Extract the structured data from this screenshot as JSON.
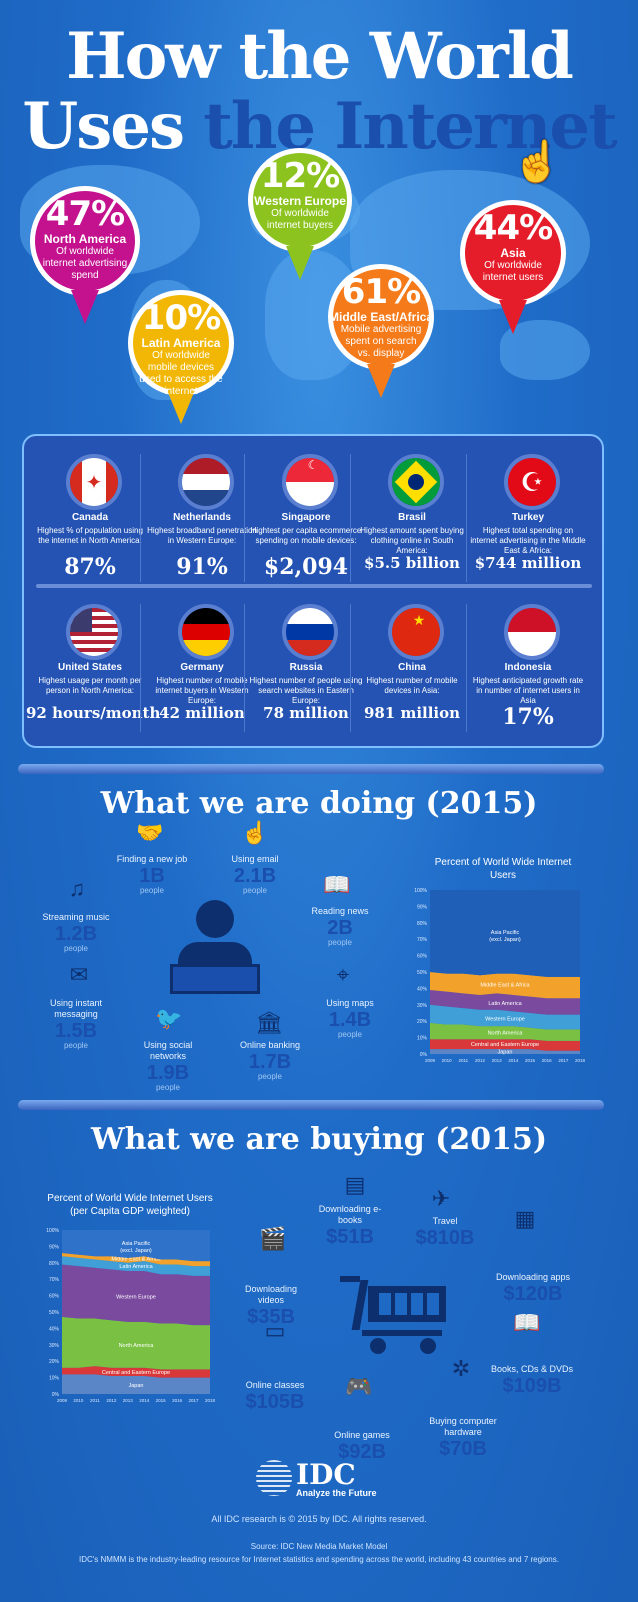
{
  "title": {
    "line1": "How the World",
    "line2a": "Uses ",
    "line2b": "the Internet"
  },
  "pins": [
    {
      "pct": "47%",
      "region": "North America",
      "desc": "Of worldwide internet advertising spend",
      "color": "#c4128f"
    },
    {
      "pct": "10%",
      "region": "Latin America",
      "desc": "Of worldwide mobile devices used to access the internet",
      "color": "#f2b705"
    },
    {
      "pct": "12%",
      "region": "Western Europe",
      "desc": "Of worldwide internet buyers",
      "color": "#8cc31e"
    },
    {
      "pct": "61%",
      "region": "Middle East/Africa",
      "desc": "Mobile advertising spent on search vs. display",
      "color": "#f47a1a"
    },
    {
      "pct": "44%",
      "region": "Asia",
      "desc": "Of worldwide internet users",
      "color": "#e51d2a"
    }
  ],
  "countries": [
    {
      "name": "Canada",
      "desc": "Highest % of population using the internet in North America:",
      "value": "87%",
      "flag": "canada"
    },
    {
      "name": "Netherlands",
      "desc": "Highest broadband penetration in Western Europe:",
      "value": "91%",
      "flag": "netherlands"
    },
    {
      "name": "Singapore",
      "desc": "Hightest  per capita ecommerce spending on mobile devices:",
      "value": "$2,094",
      "flag": "singapore"
    },
    {
      "name": "Brasil",
      "desc": "Highest amount spent buying clothing online in South America:",
      "value": "$5.5 billion",
      "flag": "brazil"
    },
    {
      "name": "Turkey",
      "desc": "Highest total spending on internet advertising in the Middle East & Africa:",
      "value": "$744 million",
      "flag": "turkey"
    },
    {
      "name": "United States",
      "desc": "Highest usage per month per person in North America:",
      "value": "92 hours/month",
      "flag": "usa"
    },
    {
      "name": "Germany",
      "desc": "Highest number of mobile internet buyers in Western Europe:",
      "value": "42 million",
      "flag": "germany"
    },
    {
      "name": "Russia",
      "desc": "Highest number of people using search websites in Eastern Europe:",
      "value": "78 million",
      "flag": "russia"
    },
    {
      "name": "China",
      "desc": "Highest number of mobile devices in Asia:",
      "value": "981 million",
      "flag": "china"
    },
    {
      "name": "Indonesia",
      "desc": "Highest anticipated growth rate in number of internet users in Asia",
      "value": "17%",
      "flag": "indonesia"
    }
  ],
  "doing": {
    "title": "What we are doing (2015)",
    "items": [
      {
        "label": "Finding a new job",
        "num": "1B",
        "ppl": "people",
        "icon": "handshake-icon",
        "glyph": "🤝"
      },
      {
        "label": "Using email",
        "num": "2.1B",
        "ppl": "people",
        "icon": "tablet-touch-icon",
        "glyph": "☝"
      },
      {
        "label": "Reading news",
        "num": "2B",
        "ppl": "people",
        "icon": "book-reader-icon",
        "glyph": "📖"
      },
      {
        "label": "Streaming music",
        "num": "1.2B",
        "ppl": "people",
        "icon": "music-note-icon",
        "glyph": "♫"
      },
      {
        "label": "Using maps",
        "num": "1.4B",
        "ppl": "people",
        "icon": "map-icon",
        "glyph": "⌖"
      },
      {
        "label": "Using instant messaging",
        "num": "1.5B",
        "ppl": "people",
        "icon": "phone-chat-icon",
        "glyph": "✉"
      },
      {
        "label": "Using social networks",
        "num": "1.9B",
        "ppl": "people",
        "icon": "bird-icon",
        "glyph": "🐦"
      },
      {
        "label": "Online banking",
        "num": "1.7B",
        "ppl": "people",
        "icon": "bank-icon",
        "glyph": "🏛"
      }
    ]
  },
  "buying": {
    "title": "What we are buying (2015)",
    "items": [
      {
        "label": "Downloading e-books",
        "num": "$51B",
        "icon": "ebook-icon",
        "glyph": "▤"
      },
      {
        "label": "Travel",
        "num": "$810B",
        "icon": "airplane-icon",
        "glyph": "✈"
      },
      {
        "label": "Downloading apps",
        "num": "$120B",
        "icon": "phone-apps-icon",
        "glyph": "▦"
      },
      {
        "label": "Downloading videos",
        "num": "$35B",
        "icon": "clapperboard-icon",
        "glyph": "🎬"
      },
      {
        "label": "Books, CDs & DVDs",
        "num": "$109B",
        "icon": "open-book-icon",
        "glyph": "📖"
      },
      {
        "label": "Online classes",
        "num": "$105B",
        "icon": "teacher-board-icon",
        "glyph": "▭"
      },
      {
        "label": "Buying computer hardware",
        "num": "$70B",
        "icon": "fan-icon",
        "glyph": "✲"
      },
      {
        "label": "Online games",
        "num": "$92B",
        "icon": "gamepad-icon",
        "glyph": "🎮"
      }
    ]
  },
  "chart_data": [
    {
      "type": "area",
      "title": "Percent of World Wide Internet Users",
      "x": [
        "2009",
        "2010",
        "2011",
        "2012",
        "2013",
        "2014",
        "2015",
        "2016",
        "2017",
        "2018"
      ],
      "yticks": [
        "0%",
        "10%",
        "20%",
        "30%",
        "40%",
        "50%",
        "60%",
        "70%",
        "80%",
        "90%",
        "100%"
      ],
      "ylim": [
        0,
        100
      ],
      "series": [
        {
          "name": "Japan",
          "values": [
            3,
            3,
            3,
            3,
            3,
            3,
            3,
            2,
            2,
            2
          ],
          "color": "#5a86c7"
        },
        {
          "name": "Central and Eastern Europe",
          "values": [
            6,
            6,
            6,
            6,
            6,
            6,
            6,
            6,
            6,
            6
          ],
          "color": "#d9383a"
        },
        {
          "name": "North America",
          "values": [
            10,
            9,
            9,
            8,
            8,
            8,
            7,
            7,
            7,
            7
          ],
          "color": "#7ac143"
        },
        {
          "name": "Western Europe",
          "values": [
            11,
            11,
            10,
            10,
            10,
            9,
            9,
            9,
            9,
            9
          ],
          "color": "#3f9fd6"
        },
        {
          "name": "Latin America",
          "values": [
            9,
            9,
            9,
            9,
            10,
            10,
            10,
            10,
            10,
            10
          ],
          "color": "#7a4a9e"
        },
        {
          "name": "Middle East & Africa",
          "values": [
            11,
            11,
            12,
            12,
            12,
            13,
            13,
            13,
            13,
            13
          ],
          "color": "#f2a12a"
        },
        {
          "name": "Asia Pacific (excl. Japan)",
          "values": [
            50,
            51,
            51,
            52,
            51,
            51,
            52,
            53,
            53,
            53
          ],
          "color": "#1f5fb8"
        }
      ]
    },
    {
      "type": "area",
      "title": "Percent of World Wide Internet Users (per Capita GDP weighted)",
      "x": [
        "2009",
        "2010",
        "2011",
        "2012",
        "2013",
        "2014",
        "2015",
        "2016",
        "2017",
        "2018"
      ],
      "yticks": [
        "0%",
        "10%",
        "20%",
        "30%",
        "40%",
        "50%",
        "60%",
        "70%",
        "80%",
        "90%",
        "100%"
      ],
      "ylim": [
        0,
        100
      ],
      "series": [
        {
          "name": "Japan",
          "values": [
            12,
            12,
            12,
            11,
            11,
            11,
            10,
            10,
            10,
            10
          ],
          "color": "#5a86c7"
        },
        {
          "name": "Central and Eastern Europe",
          "values": [
            4,
            4,
            5,
            5,
            5,
            5,
            5,
            5,
            5,
            5
          ],
          "color": "#d9383a"
        },
        {
          "name": "North America",
          "values": [
            31,
            30,
            29,
            29,
            28,
            28,
            28,
            28,
            27,
            27
          ],
          "color": "#7ac143"
        },
        {
          "name": "Western Europe",
          "values": [
            32,
            32,
            31,
            31,
            31,
            31,
            30,
            30,
            30,
            30
          ],
          "color": "#7a4a9e"
        },
        {
          "name": "Latin America",
          "values": [
            5,
            5,
            5,
            5,
            5,
            6,
            6,
            6,
            6,
            6
          ],
          "color": "#3f9fd6"
        },
        {
          "name": "Middle East & Africa",
          "values": [
            2,
            2,
            2,
            3,
            3,
            3,
            3,
            3,
            3,
            3
          ],
          "color": "#f2a12a"
        },
        {
          "name": "Asia Pacific (excl. Japan)",
          "values": [
            14,
            15,
            16,
            16,
            17,
            16,
            18,
            18,
            19,
            19
          ],
          "color": "#2f72c9"
        }
      ]
    }
  ],
  "footer": {
    "logo": "IDC",
    "tagline": "Analyze the Future",
    "copyright": "All IDC research is © 2015 by IDC. All rights reserved.",
    "source": "Source: IDC New Media Market Model",
    "note": "IDC's NMMM is the industry-leading resource for Internet statistics and spending across the world, including 43 countries and 7 regions."
  }
}
